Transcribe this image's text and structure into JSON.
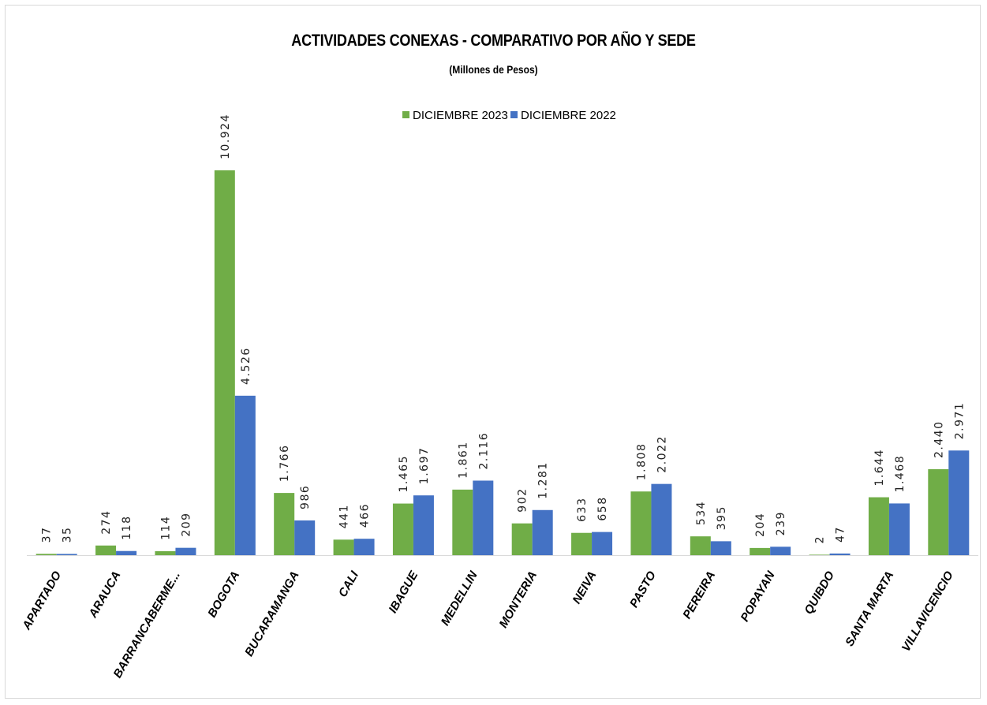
{
  "chart_data": {
    "type": "bar",
    "title": "ACTIVIDADES CONEXAS - COMPARATIVO POR AÑO Y SEDE",
    "subtitle": "(Millones de Pesos)",
    "xlabel": "",
    "ylabel": "",
    "ylim": [
      0,
      10924
    ],
    "grid": false,
    "legend_position": "top-center",
    "categories": [
      "APARTADO",
      "ARAUCA",
      "BARRANCABERME...",
      "BOGOTA",
      "BUCARAMANGA",
      "CALI",
      "IBAGUE",
      "MEDELLIN",
      "MONTERIA",
      "NEIVA",
      "PASTO",
      "PEREIRA",
      "POPAYAN",
      "QUIBDO",
      "SANTA MARTA",
      "VILLAVICENCIO"
    ],
    "series": [
      {
        "name": "DICIEMBRE 2023",
        "color": "#70ad47",
        "values": [
          37,
          274,
          114,
          10924,
          1766,
          441,
          1465,
          1861,
          902,
          633,
          1808,
          534,
          204,
          2,
          1644,
          2440
        ],
        "labels": [
          "37",
          "274",
          "114",
          "10.924",
          "1.766",
          "441",
          "1.465",
          "1.861",
          "902",
          "633",
          "1.808",
          "534",
          "204",
          "2",
          "1.644",
          "2.440"
        ]
      },
      {
        "name": "DICIEMBRE 2022",
        "color": "#4472c4",
        "values": [
          35,
          118,
          209,
          4526,
          986,
          466,
          1697,
          2116,
          1281,
          658,
          2022,
          395,
          239,
          47,
          1468,
          2971
        ],
        "labels": [
          "35",
          "118",
          "209",
          "4.526",
          "986",
          "466",
          "1.697",
          "2.116",
          "1.281",
          "658",
          "2.022",
          "395",
          "239",
          "47",
          "1.468",
          "2.971"
        ]
      }
    ]
  }
}
